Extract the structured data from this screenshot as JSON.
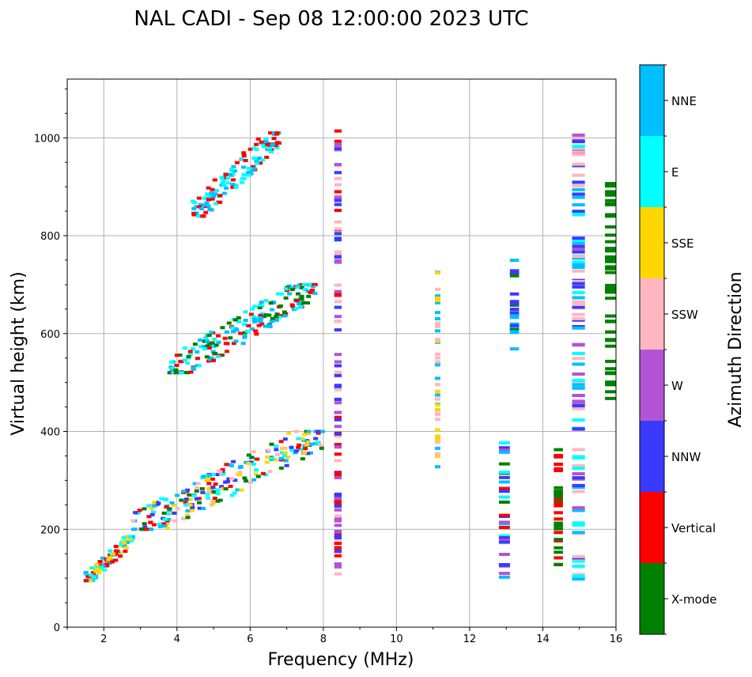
{
  "chart_data": {
    "type": "scatter",
    "title": "NAL CADI - Sep 08 12:00:00 2023 UTC",
    "xlabel": "Frequency (MHz)",
    "ylabel": "Virtual height (km)",
    "xlim": [
      1,
      16
    ],
    "ylim": [
      0,
      1120
    ],
    "xticks": [
      2,
      4,
      6,
      8,
      10,
      12,
      14,
      16
    ],
    "xtick_labels": [
      "2",
      "4",
      "6",
      "8",
      "10",
      "12",
      "14",
      "16"
    ],
    "yticks": [
      0,
      200,
      400,
      600,
      800,
      1000
    ],
    "ytick_labels": [
      "0",
      "200",
      "400",
      "600",
      "800",
      "1000"
    ],
    "grid": true,
    "colorbar": {
      "title": "Azimuth Direction",
      "categories": [
        {
          "label": "X-mode",
          "color": "#008000"
        },
        {
          "label": "Vertical",
          "color": "#ff0000"
        },
        {
          "label": "NNW",
          "color": "#3a3aff"
        },
        {
          "label": "W",
          "color": "#b353d6"
        },
        {
          "label": "SSW",
          "color": "#ffb6c1"
        },
        {
          "label": "SSE",
          "color": "#ffd700"
        },
        {
          "label": "E",
          "color": "#00ffff"
        },
        {
          "label": "NNE",
          "color": "#00bfff"
        }
      ]
    },
    "clusters": [
      {
        "name": "E-layer low trace",
        "x_range": [
          1.5,
          2.8
        ],
        "y_range": [
          95,
          185
        ],
        "categories": [
          "Vertical",
          "NNE",
          "SSE",
          "E"
        ]
      },
      {
        "name": "F-layer first hop",
        "x_range": [
          2.8,
          8.0
        ],
        "y_range": [
          200,
          400
        ],
        "categories": [
          "Vertical",
          "NNE",
          "E",
          "NNW",
          "SSE",
          "X-mode",
          "SSW"
        ]
      },
      {
        "name": "F-layer second hop",
        "x_range": [
          3.8,
          7.8
        ],
        "y_range": [
          520,
          700
        ],
        "categories": [
          "Vertical",
          "NNE",
          "E",
          "X-mode"
        ]
      },
      {
        "name": "F-layer third hop",
        "x_range": [
          4.4,
          6.8
        ],
        "y_range": [
          840,
          1010
        ],
        "categories": [
          "Vertical",
          "NNE",
          "E"
        ]
      },
      {
        "name": "Column 8.5 MHz",
        "x_range": [
          8.3,
          8.5
        ],
        "y_range": [
          100,
          1015
        ],
        "categories": [
          "Vertical",
          "W",
          "SSW",
          "NNW"
        ]
      },
      {
        "name": "Column 11.1 MHz",
        "x_range": [
          11.05,
          11.2
        ],
        "y_range": [
          325,
          740
        ],
        "categories": [
          "SSE",
          "NNE",
          "SSW"
        ]
      },
      {
        "name": "Column 12.9 MHz",
        "x_range": [
          12.8,
          13.1
        ],
        "y_range": [
          90,
          380
        ],
        "categories": [
          "NNW",
          "W",
          "NNE",
          "E",
          "Vertical",
          "X-mode"
        ]
      },
      {
        "name": "Column 13.2 MHz",
        "x_range": [
          13.1,
          13.35
        ],
        "y_range": [
          565,
          780
        ],
        "categories": [
          "NNW",
          "NNE",
          "X-mode"
        ]
      },
      {
        "name": "Column 14.4 MHz",
        "x_range": [
          14.3,
          14.55
        ],
        "y_range": [
          90,
          365
        ],
        "categories": [
          "X-mode",
          "Vertical"
        ]
      },
      {
        "name": "Column 14.9 MHz",
        "x_range": [
          14.8,
          15.15
        ],
        "y_range": [
          90,
          1015
        ],
        "categories": [
          "NNW",
          "W",
          "E",
          "SSW",
          "NNE"
        ]
      },
      {
        "name": "Right-edge marks",
        "x_range": [
          15.7,
          16.0
        ],
        "y_range": [
          465,
          910
        ],
        "categories": [
          "X-mode"
        ]
      }
    ]
  }
}
